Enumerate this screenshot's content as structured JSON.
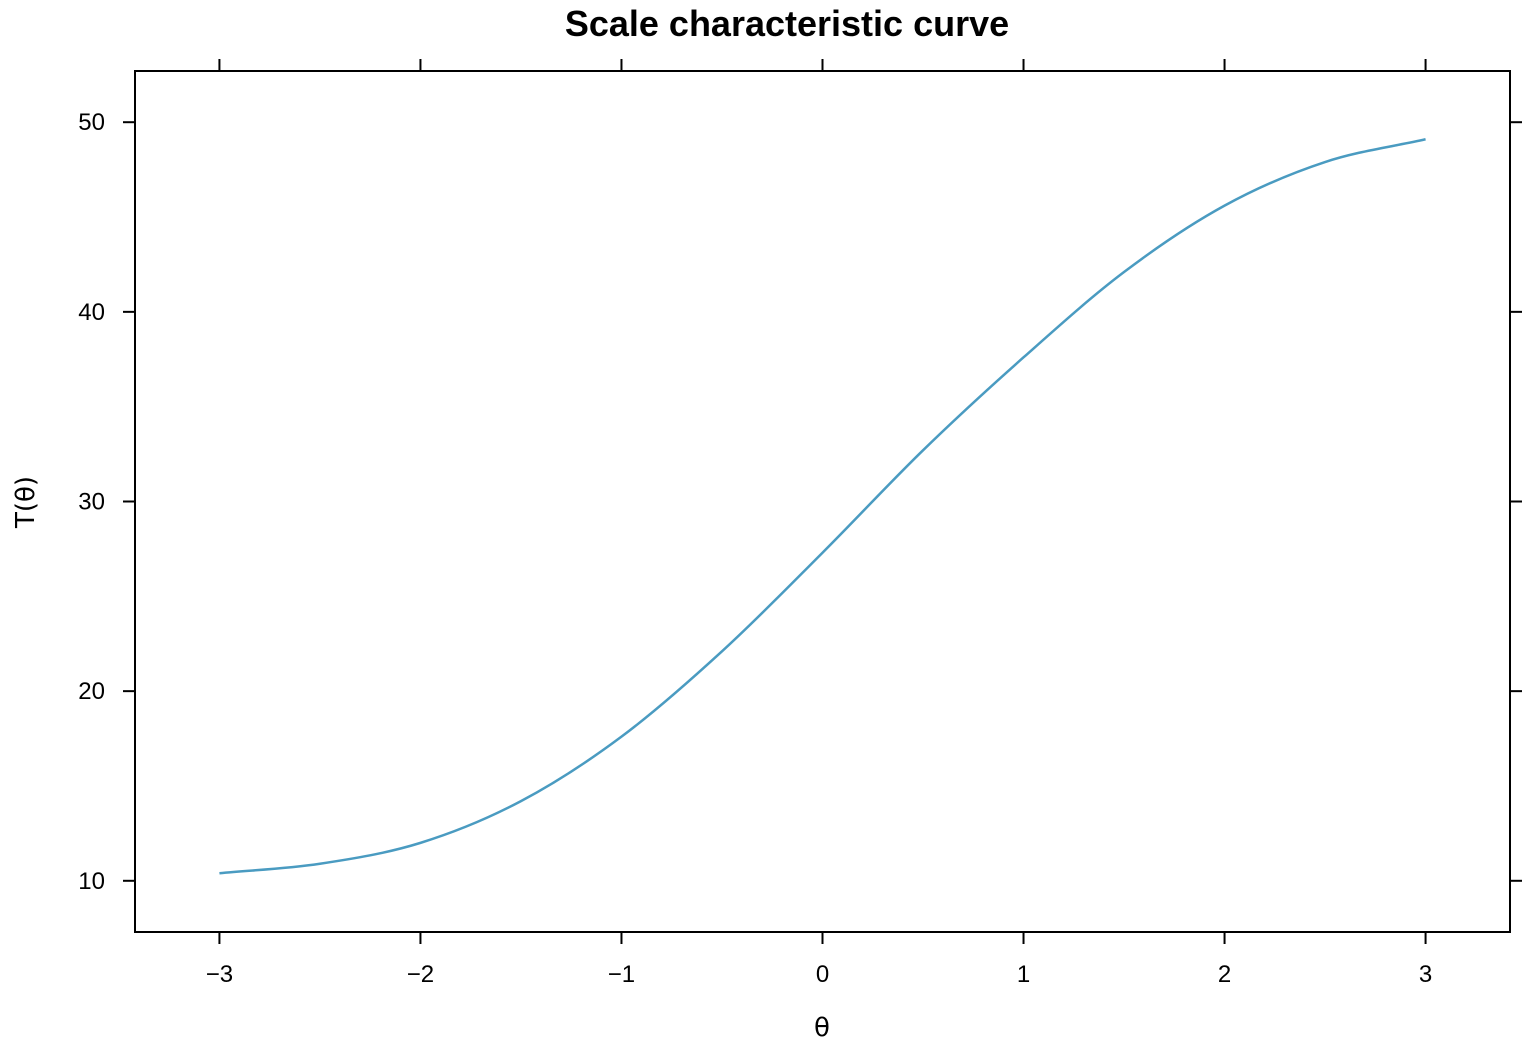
{
  "chart_data": {
    "type": "line",
    "title": "Scale characteristic curve",
    "xlabel": "θ",
    "ylabel": "T(θ)",
    "xlim": [
      -3.42,
      3.42
    ],
    "ylim": [
      7.3,
      52.7
    ],
    "x_ticks": [
      -3,
      -2,
      -1,
      0,
      1,
      2,
      3
    ],
    "x_tick_labels": [
      "−3",
      "−2",
      "−1",
      "0",
      "1",
      "2",
      "3"
    ],
    "y_ticks": [
      10,
      20,
      30,
      40,
      50
    ],
    "y_tick_labels": [
      "10",
      "20",
      "30",
      "40",
      "50"
    ],
    "grid": false,
    "legend": "none",
    "series": [
      {
        "color": "#4a9bc1",
        "x": [
          -3.0,
          -2.5,
          -2.0,
          -1.5,
          -1.0,
          -0.5,
          0.0,
          0.5,
          1.0,
          1.5,
          2.0,
          2.5,
          3.0
        ],
        "y": [
          10.4,
          10.9,
          12.0,
          14.2,
          17.6,
          22.1,
          27.3,
          32.7,
          37.6,
          42.1,
          45.6,
          47.9,
          49.1
        ]
      }
    ]
  }
}
